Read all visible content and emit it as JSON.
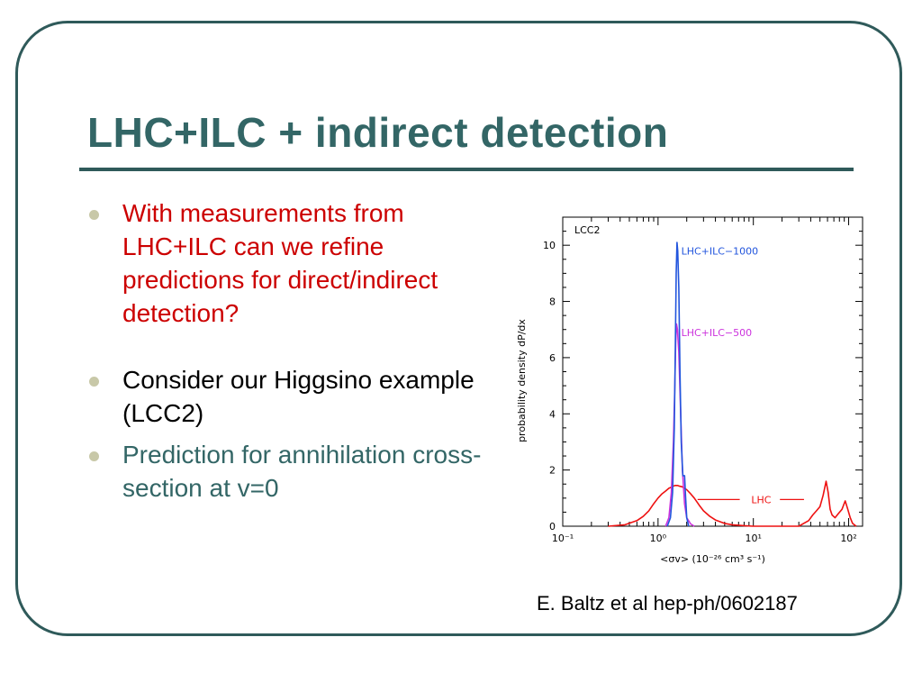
{
  "slide": {
    "title": "LHC+ILC + indirect detection",
    "bullets": [
      "With measurements from LHC+ILC can we refine predictions for direct/indirect detection?",
      "Consider our Higgsino example (LCC2)",
      "Prediction for annihilation cross-section at v=0"
    ],
    "citation": "E. Baltz et al hep-ph/0602187",
    "colors": {
      "title": "#336666",
      "bullet_red": "#cc0000",
      "bullet_black": "#000000",
      "bullet_teal": "#336666"
    }
  },
  "chart_data": {
    "type": "line",
    "panel_label": "LCC2",
    "xlabel": "<σv> (10⁻²⁶ cm³ s⁻¹)",
    "ylabel": "probability density dP/dx",
    "xscale": "log",
    "xlim": [
      0.1,
      140
    ],
    "ylim": [
      0,
      11
    ],
    "x_ticks": [
      0.1,
      1,
      10,
      100
    ],
    "x_tick_labels": [
      "10⁻¹",
      "10⁰",
      "10¹",
      "10²"
    ],
    "y_ticks": [
      0,
      2,
      4,
      6,
      8,
      10
    ],
    "y_tick_labels": [
      "0",
      "2",
      "4",
      "6",
      "8",
      "10"
    ],
    "series": [
      {
        "name": "LHC",
        "color": "#ee1111",
        "x": [
          0.3,
          0.45,
          0.6,
          0.7,
          0.8,
          0.9,
          1.0,
          1.1,
          1.2,
          1.3,
          1.4,
          1.5,
          1.6,
          1.7,
          1.8,
          1.9,
          2.0,
          2.2,
          2.4,
          2.7,
          3.0,
          3.5,
          4.0,
          5.0,
          6.0,
          8.0,
          10,
          14,
          20,
          30,
          38,
          42,
          46,
          50,
          54,
          58,
          61,
          64,
          67,
          72,
          78,
          85,
          92,
          98,
          104,
          110,
          120
        ],
        "y": [
          0.0,
          0.05,
          0.2,
          0.35,
          0.55,
          0.8,
          1.0,
          1.15,
          1.25,
          1.35,
          1.4,
          1.45,
          1.45,
          1.42,
          1.4,
          1.35,
          1.3,
          1.15,
          1.0,
          0.75,
          0.55,
          0.35,
          0.22,
          0.1,
          0.05,
          0.02,
          0.0,
          0.0,
          0.0,
          0.0,
          0.2,
          0.4,
          0.55,
          0.7,
          1.1,
          1.6,
          1.2,
          0.6,
          0.4,
          0.3,
          0.45,
          0.6,
          0.9,
          0.6,
          0.3,
          0.1,
          0.0
        ]
      },
      {
        "name": "LHC+ILC-500",
        "color": "#cc33dd",
        "x": [
          1.2,
          1.3,
          1.38,
          1.45,
          1.5,
          1.53,
          1.56,
          1.6,
          1.65,
          1.72,
          1.8,
          1.9,
          2.0,
          2.2,
          2.4
        ],
        "y": [
          0.0,
          0.3,
          1.2,
          3.0,
          5.0,
          6.5,
          7.2,
          7.0,
          6.2,
          4.2,
          2.0,
          0.8,
          0.3,
          0.08,
          0.0
        ]
      },
      {
        "name": "LHC+ILC-1000",
        "color": "#2255dd",
        "x": [
          1.25,
          1.35,
          1.42,
          1.48,
          1.52,
          1.55,
          1.58,
          1.61,
          1.65,
          1.7,
          1.75,
          1.82,
          1.9,
          1.95,
          2.0,
          2.1
        ],
        "y": [
          0.0,
          0.3,
          1.2,
          3.5,
          6.5,
          9.0,
          10.1,
          9.8,
          8.5,
          5.5,
          3.0,
          1.8,
          1.8,
          1.0,
          0.3,
          0.0
        ]
      }
    ],
    "annotations": [
      {
        "text": "LHC+ILC−1000",
        "x": 1.75,
        "y": 9.8,
        "color": "#2255dd"
      },
      {
        "text": "LHC+ILC−500",
        "x": 1.75,
        "y": 6.9,
        "color": "#cc33dd"
      },
      {
        "text": "LHC",
        "x": 9.5,
        "y": 0.95,
        "color": "#ee1111"
      }
    ]
  }
}
